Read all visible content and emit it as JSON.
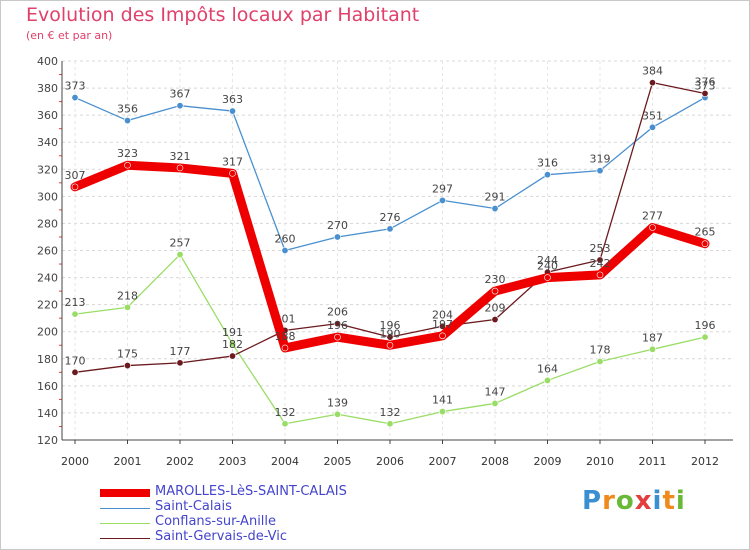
{
  "chart_data": {
    "type": "line",
    "title": "Evolution des Impôts locaux par Habitant",
    "subtitle": "(en € et par an)",
    "xlabel": "",
    "ylabel": "",
    "ylim": [
      120,
      400
    ],
    "yticks": [
      120,
      140,
      160,
      180,
      200,
      220,
      240,
      260,
      280,
      300,
      320,
      340,
      360,
      380,
      400
    ],
    "categories": [
      "2000",
      "2001",
      "2002",
      "2003",
      "2004",
      "2005",
      "2006",
      "2007",
      "2008",
      "2009",
      "2010",
      "2011",
      "2012"
    ],
    "series": [
      {
        "name": "Saint-Calais",
        "color": "#4a90cf",
        "values": [
          373,
          356,
          367,
          363,
          260,
          270,
          276,
          297,
          291,
          316,
          319,
          351,
          373
        ]
      },
      {
        "name": "Conflans-sur-Anille",
        "color": "#99dd66",
        "values": [
          213,
          218,
          257,
          191,
          132,
          139,
          132,
          141,
          147,
          164,
          178,
          187,
          196
        ]
      },
      {
        "name": "Saint-Gervais-de-Vic",
        "color": "#6b1a1f",
        "values": [
          170,
          175,
          177,
          182,
          201,
          206,
          196,
          204,
          209,
          244,
          253,
          384,
          376
        ]
      },
      {
        "name": "MAROLLES-LèS-SAINT-CALAIS",
        "color": "#ee0000",
        "values": [
          307,
          323,
          321,
          317,
          188,
          196,
          190,
          197,
          230,
          240,
          242,
          277,
          265
        ]
      }
    ],
    "legend": [
      "MAROLLES-LèS-SAINT-CALAIS",
      "Saint-Calais",
      "Conflans-sur-Anille",
      "Saint-Gervais-de-Vic"
    ]
  },
  "branding": {
    "logo_text": "Proxiti"
  }
}
